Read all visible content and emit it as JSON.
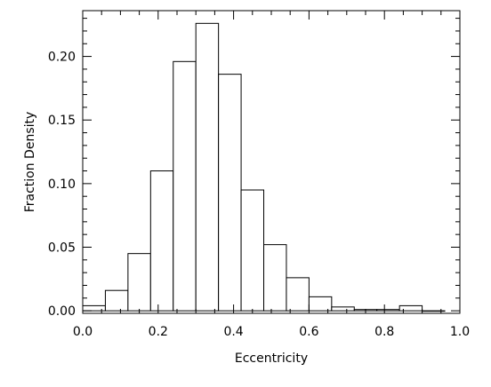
{
  "chart_data": {
    "type": "bar",
    "title": "",
    "xlabel": "Eccentricity",
    "ylabel": "Fraction Density",
    "xlim": [
      0.0,
      1.0
    ],
    "ylim": [
      -0.002,
      0.236
    ],
    "grid": false,
    "bin_edges": [
      0.0,
      0.06,
      0.12,
      0.18,
      0.24,
      0.3,
      0.36,
      0.42,
      0.48,
      0.54,
      0.6,
      0.66,
      0.72,
      0.78,
      0.84,
      0.9,
      0.96
    ],
    "values": [
      0.004,
      0.016,
      0.045,
      0.11,
      0.196,
      0.226,
      0.186,
      0.095,
      0.052,
      0.026,
      0.011,
      0.003,
      0.001,
      0.001,
      0.004,
      0.0
    ],
    "xticks": [
      "0.0",
      "0.2",
      "0.4",
      "0.6",
      "0.8",
      "1.0"
    ],
    "yticks": [
      "0.00",
      "0.05",
      "0.10",
      "0.15",
      "0.20"
    ]
  }
}
